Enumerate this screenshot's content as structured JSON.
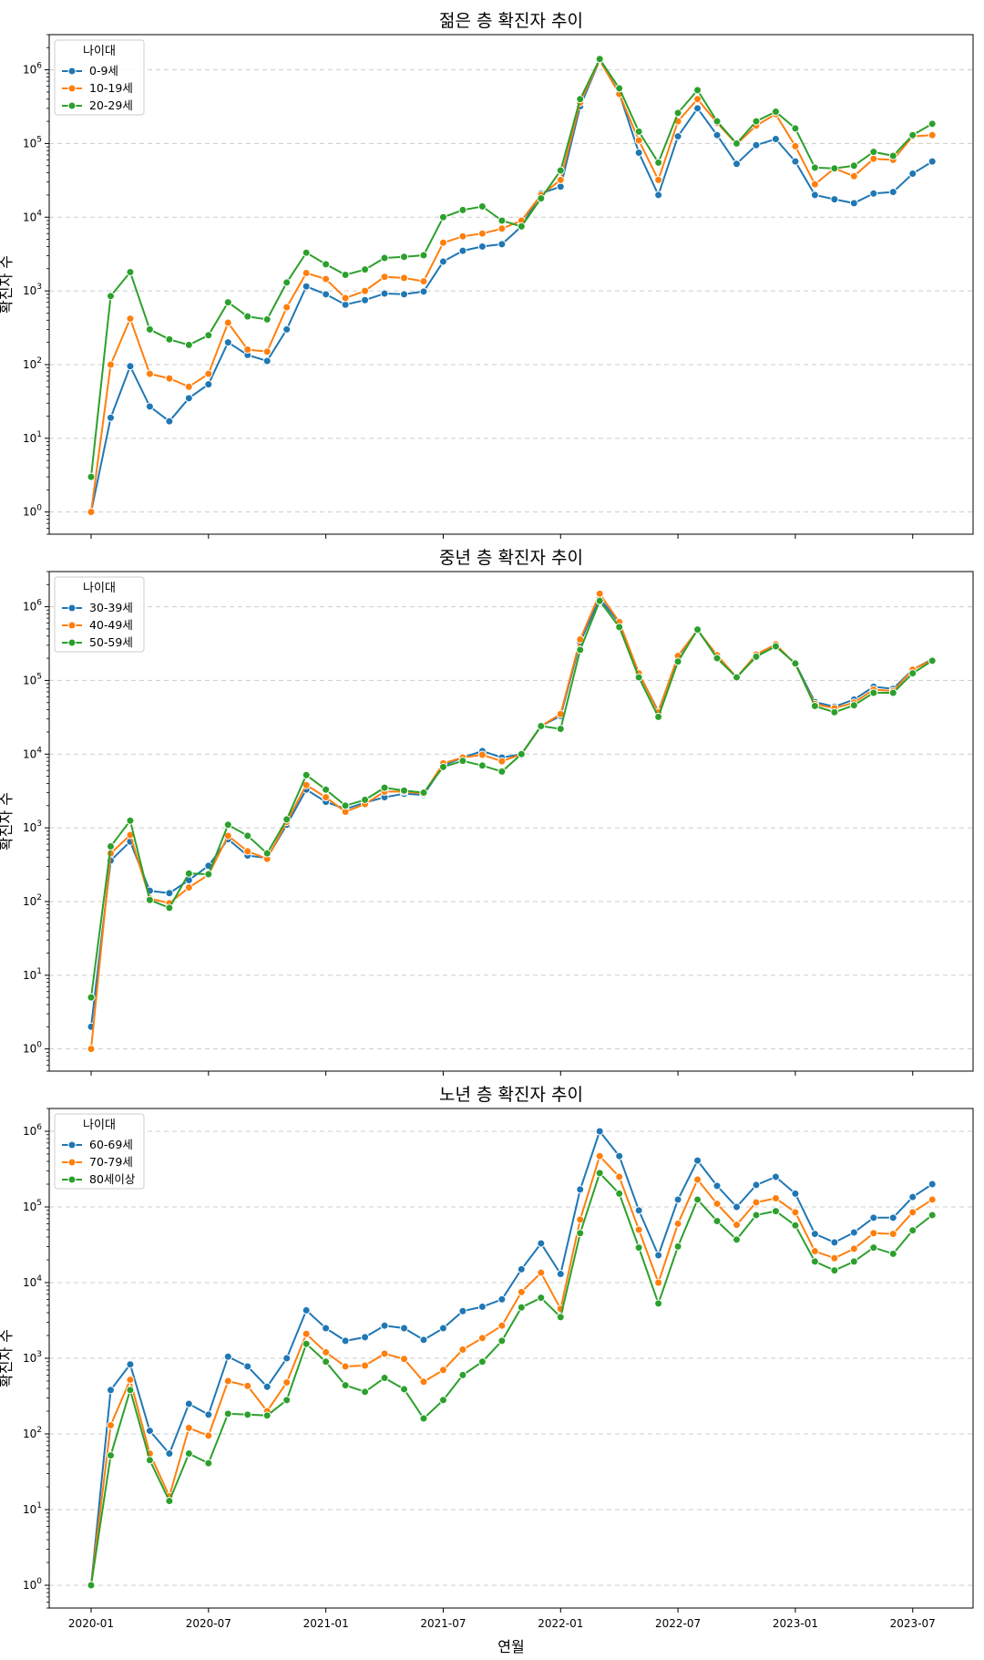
{
  "x_label": "연월",
  "y_label": "확진자 수",
  "legend_title": "나이대",
  "x_tick_labels": [
    "2020-01",
    "2020-07",
    "2021-01",
    "2021-07",
    "2022-01",
    "2022-07",
    "2023-01",
    "2023-07"
  ],
  "colors": {
    "series1": "#1f77b4",
    "series2": "#ff7f0e",
    "series3": "#2ca02c",
    "grid": "#cccccc"
  },
  "chart_data": [
    {
      "type": "line",
      "title": "젊은 층 확진자 추이",
      "yscale": "log",
      "ylim": [
        0.5,
        3000000
      ],
      "legend_position": "top-left",
      "x": [
        "2020-01",
        "2020-02",
        "2020-03",
        "2020-04",
        "2020-05",
        "2020-06",
        "2020-07",
        "2020-08",
        "2020-09",
        "2020-10",
        "2020-11",
        "2020-12",
        "2021-01",
        "2021-02",
        "2021-03",
        "2021-04",
        "2021-05",
        "2021-06",
        "2021-07",
        "2021-08",
        "2021-09",
        "2021-10",
        "2021-11",
        "2021-12",
        "2022-01",
        "2022-02",
        "2022-03",
        "2022-04",
        "2022-05",
        "2022-06",
        "2022-07",
        "2022-08",
        "2022-09",
        "2022-10",
        "2022-11",
        "2022-12",
        "2023-01",
        "2023-02",
        "2023-03",
        "2023-04",
        "2023-05",
        "2023-06",
        "2023-07",
        "2023-08"
      ],
      "series": [
        {
          "name": "0-9세",
          "values": [
            1,
            19,
            95,
            27,
            17,
            35,
            54,
            200,
            135,
            112,
            300,
            1150,
            900,
            650,
            750,
            920,
            900,
            980,
            2500,
            3500,
            4000,
            4300,
            7500,
            21000,
            26000,
            320000,
            1350000,
            480000,
            75000,
            20000,
            125000,
            300000,
            130000,
            53000,
            95000,
            115000,
            57000,
            20000,
            17500,
            15500,
            21000,
            22000,
            39000,
            57000
          ]
        },
        {
          "name": "10-19세",
          "values": [
            1,
            100,
            420,
            75,
            65,
            50,
            75,
            370,
            160,
            150,
            600,
            1750,
            1450,
            800,
            1000,
            1550,
            1500,
            1350,
            4500,
            5500,
            6000,
            7000,
            9000,
            20000,
            32000,
            360000,
            1350000,
            470000,
            110000,
            32000,
            200000,
            400000,
            190000,
            98000,
            175000,
            250000,
            92000,
            28000,
            46000,
            36000,
            62000,
            60000,
            125000,
            130000
          ]
        },
        {
          "name": "20-29세",
          "values": [
            3,
            850,
            1800,
            300,
            220,
            185,
            250,
            700,
            450,
            410,
            1300,
            3300,
            2300,
            1650,
            1950,
            2800,
            2900,
            3050,
            10000,
            12500,
            14000,
            9000,
            7500,
            18000,
            43000,
            400000,
            1400000,
            560000,
            145000,
            55000,
            260000,
            530000,
            200000,
            100000,
            200000,
            270000,
            160000,
            47000,
            46000,
            50000,
            77000,
            68000,
            130000,
            185000
          ]
        }
      ]
    },
    {
      "type": "line",
      "title": "중년 층 확진자 추이",
      "yscale": "log",
      "ylim": [
        0.5,
        3000000
      ],
      "legend_position": "top-left",
      "x": [
        "2020-01",
        "2020-02",
        "2020-03",
        "2020-04",
        "2020-05",
        "2020-06",
        "2020-07",
        "2020-08",
        "2020-09",
        "2020-10",
        "2020-11",
        "2020-12",
        "2021-01",
        "2021-02",
        "2021-03",
        "2021-04",
        "2021-05",
        "2021-06",
        "2021-07",
        "2021-08",
        "2021-09",
        "2021-10",
        "2021-11",
        "2021-12",
        "2022-01",
        "2022-02",
        "2022-03",
        "2022-04",
        "2022-05",
        "2022-06",
        "2022-07",
        "2022-08",
        "2022-09",
        "2022-10",
        "2022-11",
        "2022-12",
        "2023-01",
        "2023-02",
        "2023-03",
        "2023-04",
        "2023-05",
        "2023-06",
        "2023-07",
        "2023-08"
      ],
      "series": [
        {
          "name": "30-39세",
          "values": [
            2,
            360,
            650,
            140,
            130,
            195,
            305,
            700,
            420,
            390,
            1100,
            3300,
            2250,
            1800,
            2200,
            2600,
            2900,
            2800,
            7000,
            9000,
            11000,
            9000,
            10000,
            24000,
            33000,
            330000,
            1300000,
            600000,
            125000,
            38000,
            210000,
            480000,
            210000,
            110000,
            220000,
            290000,
            170000,
            51000,
            44000,
            55000,
            82000,
            77000,
            140000,
            195000
          ]
        },
        {
          "name": "40-49세",
          "values": [
            1,
            450,
            800,
            110,
            95,
            155,
            230,
            780,
            480,
            380,
            1200,
            3800,
            2600,
            1650,
            2100,
            3100,
            3100,
            2900,
            7500,
            9000,
            9800,
            8000,
            10000,
            24000,
            35000,
            360000,
            1500000,
            620000,
            125000,
            37000,
            215000,
            480000,
            220000,
            110000,
            225000,
            310000,
            165000,
            48000,
            42000,
            50000,
            75000,
            72000,
            140000,
            190000
          ]
        },
        {
          "name": "50-59세",
          "values": [
            5,
            560,
            1250,
            105,
            82,
            240,
            235,
            1100,
            780,
            450,
            1300,
            5200,
            3300,
            2000,
            2400,
            3500,
            3200,
            3000,
            6700,
            8100,
            7000,
            5800,
            10000,
            24000,
            22000,
            260000,
            1200000,
            530000,
            110000,
            32000,
            180000,
            490000,
            200000,
            110000,
            210000,
            290000,
            170000,
            45000,
            37000,
            46000,
            68000,
            68000,
            125000,
            185000
          ]
        }
      ]
    },
    {
      "type": "line",
      "title": "노년 층 확진자 추이",
      "yscale": "log",
      "ylim": [
        0.5,
        2000000
      ],
      "legend_position": "top-left",
      "x": [
        "2020-01",
        "2020-02",
        "2020-03",
        "2020-04",
        "2020-05",
        "2020-06",
        "2020-07",
        "2020-08",
        "2020-09",
        "2020-10",
        "2020-11",
        "2020-12",
        "2021-01",
        "2021-02",
        "2021-03",
        "2021-04",
        "2021-05",
        "2021-06",
        "2021-07",
        "2021-08",
        "2021-09",
        "2021-10",
        "2021-11",
        "2021-12",
        "2022-01",
        "2022-02",
        "2022-03",
        "2022-04",
        "2022-05",
        "2022-06",
        "2022-07",
        "2022-08",
        "2022-09",
        "2022-10",
        "2022-11",
        "2022-12",
        "2023-01",
        "2023-02",
        "2023-03",
        "2023-04",
        "2023-05",
        "2023-06",
        "2023-07",
        "2023-08"
      ],
      "series": [
        {
          "name": "60-69세",
          "values": [
            1,
            380,
            830,
            110,
            55,
            250,
            180,
            1050,
            780,
            420,
            1000,
            4300,
            2500,
            1700,
            1900,
            2700,
            2500,
            1750,
            2500,
            4200,
            4800,
            6000,
            15000,
            33000,
            13000,
            170000,
            1000000,
            470000,
            90000,
            23000,
            125000,
            410000,
            190000,
            100000,
            195000,
            250000,
            150000,
            44000,
            34000,
            46000,
            72000,
            72000,
            135000,
            200000
          ]
        },
        {
          "name": "70-79세",
          "values": [
            1,
            130,
            520,
            55,
            15,
            120,
            95,
            500,
            430,
            200,
            480,
            2100,
            1200,
            780,
            800,
            1150,
            980,
            490,
            700,
            1300,
            1850,
            2700,
            7500,
            13500,
            4500,
            68000,
            470000,
            250000,
            50000,
            10000,
            60000,
            230000,
            110000,
            58000,
            115000,
            130000,
            85000,
            26000,
            21000,
            28000,
            45000,
            44000,
            85000,
            125000
          ]
        },
        {
          "name": "80세이상",
          "values": [
            1,
            52,
            380,
            45,
            13,
            55,
            41,
            185,
            180,
            175,
            280,
            1550,
            900,
            440,
            360,
            550,
            390,
            160,
            280,
            600,
            900,
            1700,
            4700,
            6300,
            3500,
            45000,
            280000,
            150000,
            29000,
            5300,
            30000,
            125000,
            65000,
            37000,
            78000,
            88000,
            57000,
            19000,
            14500,
            19000,
            29000,
            24000,
            49000,
            78000
          ]
        }
      ]
    }
  ]
}
